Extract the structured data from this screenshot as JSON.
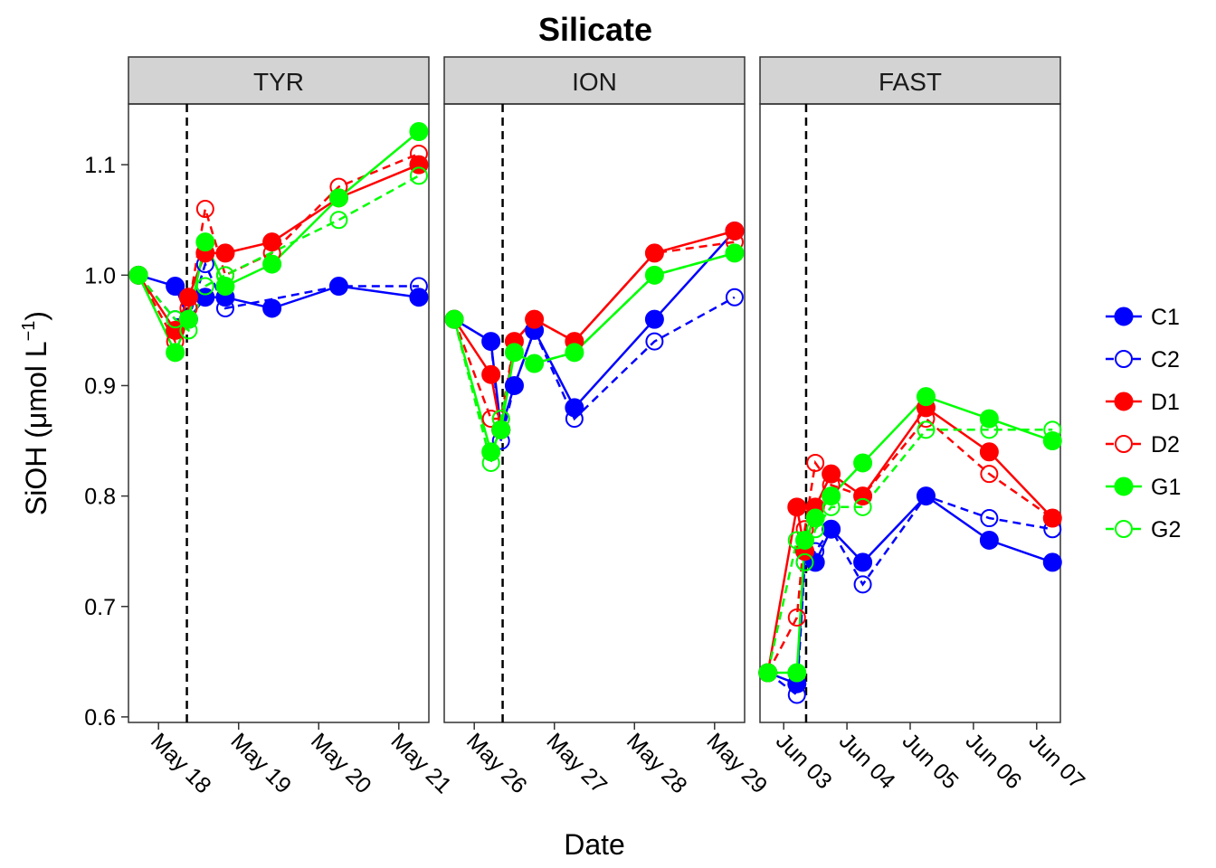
{
  "chart_data": {
    "type": "line",
    "title": "Silicate",
    "xlabel": "Date",
    "ylabel": "SiOH (μmol L",
    "ylabel_sup": "−1",
    "ylabel_close": ")",
    "ylim": [
      0.595,
      1.155
    ],
    "y_ticks": [
      0.6,
      0.7,
      0.8,
      0.9,
      1.0
    ],
    "y_tick_labels": [
      "0.6",
      "0.7",
      "0.8",
      "0.9",
      "1.0",
      "1.1"
    ],
    "y_ticks_full": [
      0.6,
      0.7,
      0.8,
      0.9,
      1.0,
      1.1
    ],
    "grid": false,
    "legend_position": "right",
    "series_styles": [
      {
        "name": "C1",
        "color": "#0000ff",
        "filled": true,
        "dashed": false
      },
      {
        "name": "C2",
        "color": "#0000ff",
        "filled": false,
        "dashed": true
      },
      {
        "name": "D1",
        "color": "#ff0000",
        "filled": true,
        "dashed": false
      },
      {
        "name": "D2",
        "color": "#ff0000",
        "filled": false,
        "dashed": true
      },
      {
        "name": "G1",
        "color": "#00ff00",
        "filled": true,
        "dashed": false
      },
      {
        "name": "G2",
        "color": "#00ff00",
        "filled": false,
        "dashed": true
      }
    ],
    "panels": [
      {
        "name": "TYR",
        "xlim": [
          "2017-05-17 15:00",
          "2017-05-21 09:00"
        ],
        "ticks": [
          "2017-05-18 00:00",
          "2017-05-19 00:00",
          "2017-05-20 00:00",
          "2017-05-21 00:00"
        ],
        "tick_labels": [
          "May 18",
          "May 19",
          "May 20",
          "May 21"
        ],
        "vline": "2017-05-18 08:30",
        "x": [
          "2017-05-17 18:00",
          "2017-05-18 05:00",
          "2017-05-18 09:00",
          "2017-05-18 14:00",
          "2017-05-18 20:00",
          "2017-05-19 10:00",
          "2017-05-20 06:00",
          "2017-05-21 06:00"
        ],
        "series": [
          {
            "name": "C1",
            "values": [
              1.0,
              0.99,
              0.96,
              0.98,
              0.98,
              0.97,
              0.99,
              0.98
            ]
          },
          {
            "name": "C2",
            "values": [
              1.0,
              0.96,
              0.96,
              1.01,
              0.97,
              null,
              0.99,
              0.99
            ]
          },
          {
            "name": "D1",
            "values": [
              1.0,
              0.95,
              0.98,
              1.02,
              1.02,
              1.03,
              1.07,
              1.1
            ]
          },
          {
            "name": "D2",
            "values": [
              1.0,
              0.94,
              0.97,
              1.06,
              1.0,
              1.02,
              1.08,
              1.11
            ]
          },
          {
            "name": "G1",
            "values": [
              1.0,
              0.93,
              0.96,
              1.03,
              0.99,
              1.01,
              1.07,
              1.13
            ]
          },
          {
            "name": "G2",
            "values": [
              1.0,
              0.96,
              0.95,
              0.99,
              1.0,
              null,
              1.05,
              1.09
            ]
          }
        ]
      },
      {
        "name": "ION",
        "xlim": [
          "2017-05-25 15:00",
          "2017-05-29 09:00"
        ],
        "ticks": [
          "2017-05-26 00:00",
          "2017-05-27 00:00",
          "2017-05-28 00:00",
          "2017-05-29 00:00"
        ],
        "tick_labels": [
          "May 26",
          "May 27",
          "May 28",
          "May 29"
        ],
        "vline": "2017-05-26 08:30",
        "x": [
          "2017-05-25 18:00",
          "2017-05-26 05:00",
          "2017-05-26 08:00",
          "2017-05-26 12:00",
          "2017-05-26 18:00",
          "2017-05-27 06:00",
          "2017-05-28 06:00",
          "2017-05-29 06:00"
        ],
        "series": [
          {
            "name": "C1",
            "values": [
              0.96,
              0.94,
              0.86,
              0.9,
              0.95,
              0.88,
              0.96,
              1.04
            ]
          },
          {
            "name": "C2",
            "values": [
              0.96,
              0.94,
              0.85,
              0.9,
              0.95,
              0.87,
              0.94,
              0.98
            ]
          },
          {
            "name": "D1",
            "values": [
              0.96,
              0.91,
              0.86,
              0.94,
              0.96,
              0.94,
              1.02,
              1.04
            ]
          },
          {
            "name": "D2",
            "values": [
              0.96,
              0.87,
              0.87,
              0.94,
              0.96,
              0.94,
              1.02,
              1.03
            ]
          },
          {
            "name": "G1",
            "values": [
              0.96,
              0.84,
              0.86,
              0.93,
              0.92,
              0.93,
              1.0,
              1.02
            ]
          },
          {
            "name": "G2",
            "values": [
              0.96,
              0.83,
              0.87,
              0.93,
              0.92,
              0.93,
              1.0,
              1.02
            ]
          }
        ]
      },
      {
        "name": "FAST",
        "xlim": [
          "2017-06-02 15:00",
          "2017-06-07 09:00"
        ],
        "ticks": [
          "2017-06-03 00:00",
          "2017-06-04 00:00",
          "2017-06-05 00:00",
          "2017-06-06 00:00",
          "2017-06-07 00:00"
        ],
        "tick_labels": [
          "Jun 03",
          "Jun 04",
          "Jun 05",
          "Jun 06",
          "Jun 07"
        ],
        "vline": "2017-06-03 08:30",
        "x": [
          "2017-06-02 18:00",
          "2017-06-03 05:00",
          "2017-06-03 08:00",
          "2017-06-03 12:00",
          "2017-06-03 18:00",
          "2017-06-04 06:00",
          "2017-06-05 06:00",
          "2017-06-06 06:00",
          "2017-06-07 06:00"
        ],
        "series": [
          {
            "name": "C1",
            "values": [
              0.64,
              0.63,
              0.75,
              0.74,
              0.77,
              0.74,
              0.8,
              0.76,
              0.74
            ]
          },
          {
            "name": "C2",
            "values": [
              0.64,
              0.62,
              0.74,
              0.75,
              0.77,
              0.72,
              0.8,
              0.78,
              0.77
            ]
          },
          {
            "name": "D1",
            "values": [
              0.64,
              0.79,
              0.75,
              0.79,
              0.82,
              0.8,
              0.88,
              0.84,
              0.78
            ]
          },
          {
            "name": "D2",
            "values": [
              0.64,
              0.69,
              0.77,
              0.83,
              0.81,
              0.8,
              0.87,
              0.82,
              0.78
            ]
          },
          {
            "name": "G1",
            "values": [
              0.64,
              0.64,
              0.76,
              0.78,
              0.8,
              0.83,
              0.89,
              0.87,
              0.85
            ]
          },
          {
            "name": "G2",
            "values": [
              0.64,
              0.76,
              0.74,
              0.77,
              0.79,
              0.79,
              0.86,
              0.86,
              0.86
            ]
          }
        ]
      }
    ]
  }
}
